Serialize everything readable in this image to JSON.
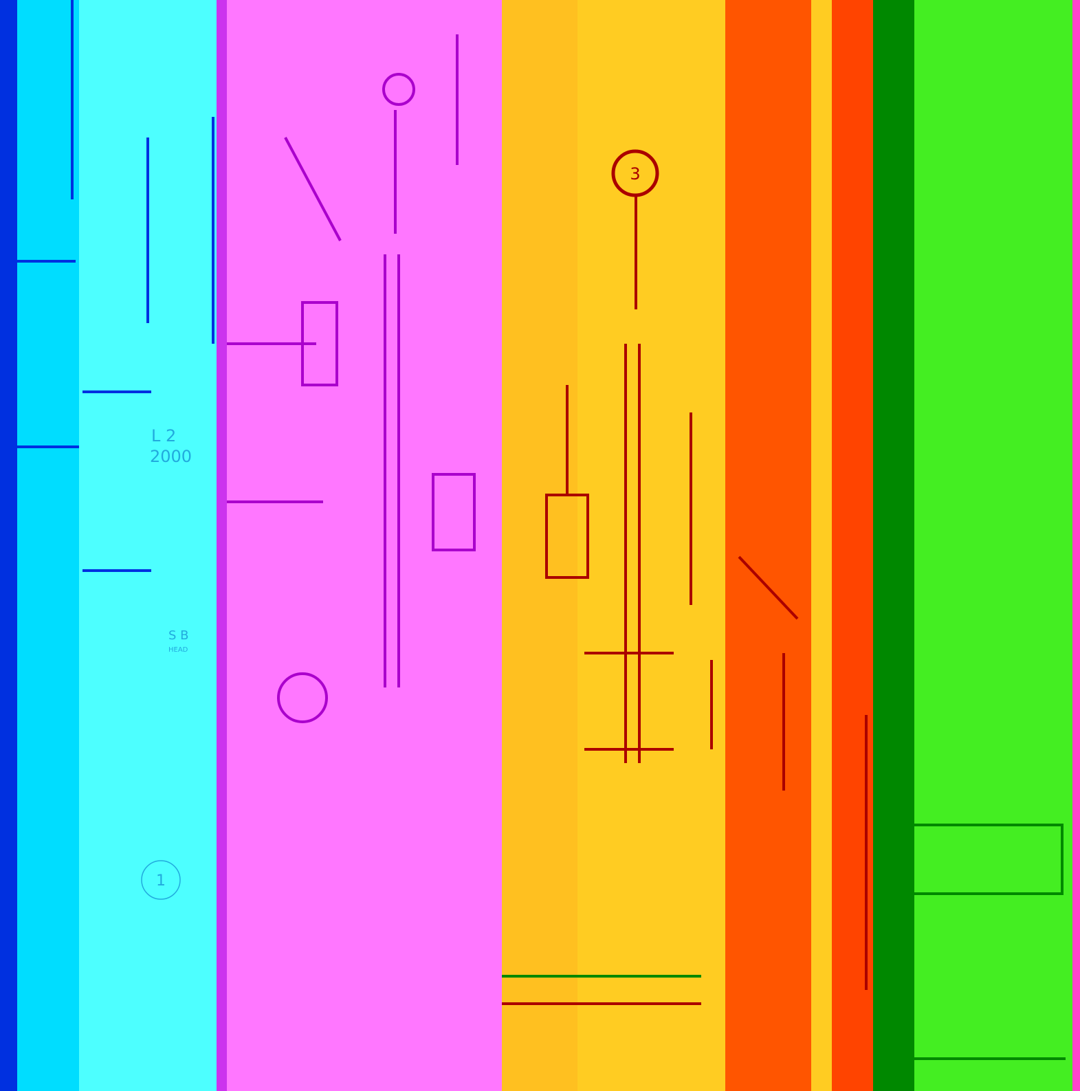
{
  "labels": {
    "level": "L 2",
    "elevation": "2000",
    "section": "S B",
    "section_note": "HEAD",
    "grid_1": "1",
    "grid_3": "3"
  }
}
